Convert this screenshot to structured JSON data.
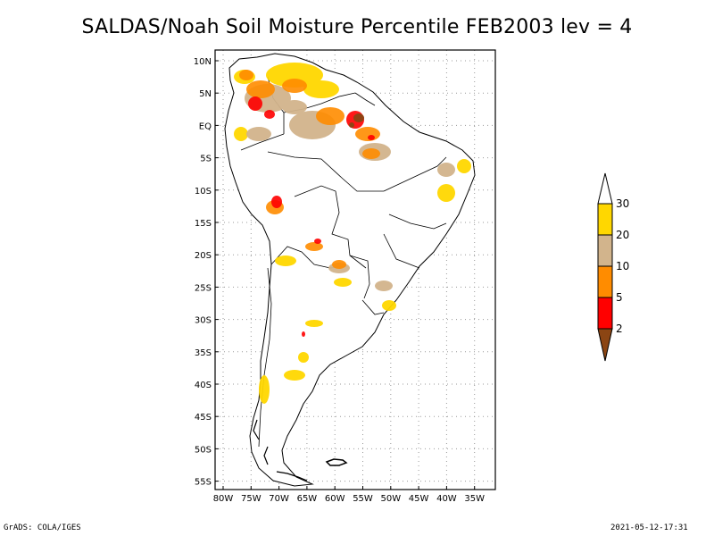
{
  "title": "SALDAS/Noah Soil Moisture Percentile FEB2003 lev = 4",
  "map": {
    "lon_range": [
      -80,
      -30
    ],
    "lat_range": [
      -55,
      12
    ],
    "lat_ticks": [
      "10N",
      "5N",
      "EQ",
      "5S",
      "10S",
      "15S",
      "20S",
      "25S",
      "30S",
      "35S",
      "40S",
      "45S",
      "50S",
      "55S"
    ],
    "lon_ticks": [
      "80W",
      "75W",
      "70W",
      "65W",
      "60W",
      "55W",
      "50W",
      "45W",
      "40W",
      "35W"
    ],
    "grid": true
  },
  "colorbar": {
    "levels": [
      "2",
      "5",
      "10",
      "20",
      "30"
    ],
    "colors": [
      "#8b4513",
      "#ff0000",
      "#ff8c00",
      "#d2b48c",
      "#ffd700",
      "#ffffff"
    ]
  },
  "footer": {
    "left": "GrADS: COLA/IGES",
    "right": "2021-05-12-17:31"
  }
}
